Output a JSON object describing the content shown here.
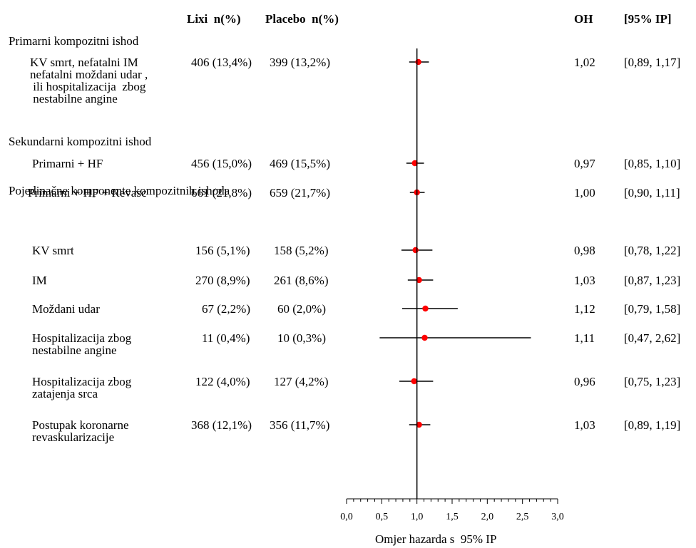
{
  "headers": {
    "lixi": "Lixi  n(%)",
    "placebo": "Placebo  n(%)",
    "oh": "OH",
    "ci": "[95% IP]"
  },
  "sections": {
    "primary": "Primarni kompozitni ishod",
    "secondary": "Sekundarni kompozitni ishod",
    "components": "Pojedinačne komponente kompozitnih ishoda"
  },
  "chart_data": {
    "type": "forest",
    "xlabel": "Omjer hazarda s  95% IP",
    "xlim": [
      0.0,
      3.0
    ],
    "xticks": [
      "0,0",
      "0,5",
      "1,0",
      "1,5",
      "2,0",
      "2,5",
      "3,0"
    ],
    "reference_line": 1.0,
    "marker_color": "#ff0000",
    "rows": [
      {
        "label": [
          "KV smrt, nefatalni IM",
          "nefatalni moždani udar ,",
          " ili hospitalizacija  zbog",
          " nestabilne angine"
        ],
        "lixi": "406 (13,4%)",
        "placebo": "399 (13,2%)",
        "oh": "1,02",
        "ci": "[0,89, 1,17]",
        "hr": 1.02,
        "lo": 0.89,
        "hi": 1.17
      },
      {
        "label": [
          "Primarni + HF"
        ],
        "lixi": "456 (15,0%)",
        "placebo": "469 (15,5%)",
        "oh": "0,97",
        "ci": "[0,85, 1,10]",
        "hr": 0.97,
        "lo": 0.85,
        "hi": 1.1
      },
      {
        "label": [
          "Primarni + HF + Revasc"
        ],
        "lixi": "661 (21,8%)",
        "placebo": "659 (21,7%)",
        "oh": "1,00",
        "ci": "[0,90, 1,11]",
        "hr": 1.0,
        "lo": 0.9,
        "hi": 1.11
      },
      {
        "label": [
          "KV smrt"
        ],
        "lixi": "156 (5,1%)",
        "placebo": "158 (5,2%)",
        "oh": "0,98",
        "ci": "[0,78, 1,22]",
        "hr": 0.98,
        "lo": 0.78,
        "hi": 1.22
      },
      {
        "label": [
          "IM"
        ],
        "lixi": "270 (8,9%)",
        "placebo": "261 (8,6%)",
        "oh": "1,03",
        "ci": "[0,87, 1,23]",
        "hr": 1.03,
        "lo": 0.87,
        "hi": 1.23
      },
      {
        "label": [
          "Moždani udar"
        ],
        "lixi": "67 (2,2%)",
        "placebo": "60 (2,0%)",
        "oh": "1,12",
        "ci": "[0,79, 1,58]",
        "hr": 1.12,
        "lo": 0.79,
        "hi": 1.58
      },
      {
        "label": [
          "Hospitalizacija zbog",
          "nestabilne angine"
        ],
        "lixi": "11 (0,4%)",
        "placebo": "10 (0,3%)",
        "oh": "1,11",
        "ci": "[0,47, 2,62]",
        "hr": 1.11,
        "lo": 0.47,
        "hi": 2.62
      },
      {
        "label": [
          "Hospitalizacija zbog",
          "zatajenja srca"
        ],
        "lixi": "122 (4,0%)",
        "placebo": "127 (4,2%)",
        "oh": "0,96",
        "ci": "[0,75, 1,23]",
        "hr": 0.96,
        "lo": 0.75,
        "hi": 1.23
      },
      {
        "label": [
          "Postupak koronarne",
          "revaskularizacije"
        ],
        "lixi": "368 (12,1%)",
        "placebo": "356 (11,7%)",
        "oh": "1,03",
        "ci": "[0,89, 1,19]",
        "hr": 1.03,
        "lo": 0.89,
        "hi": 1.19
      }
    ]
  }
}
